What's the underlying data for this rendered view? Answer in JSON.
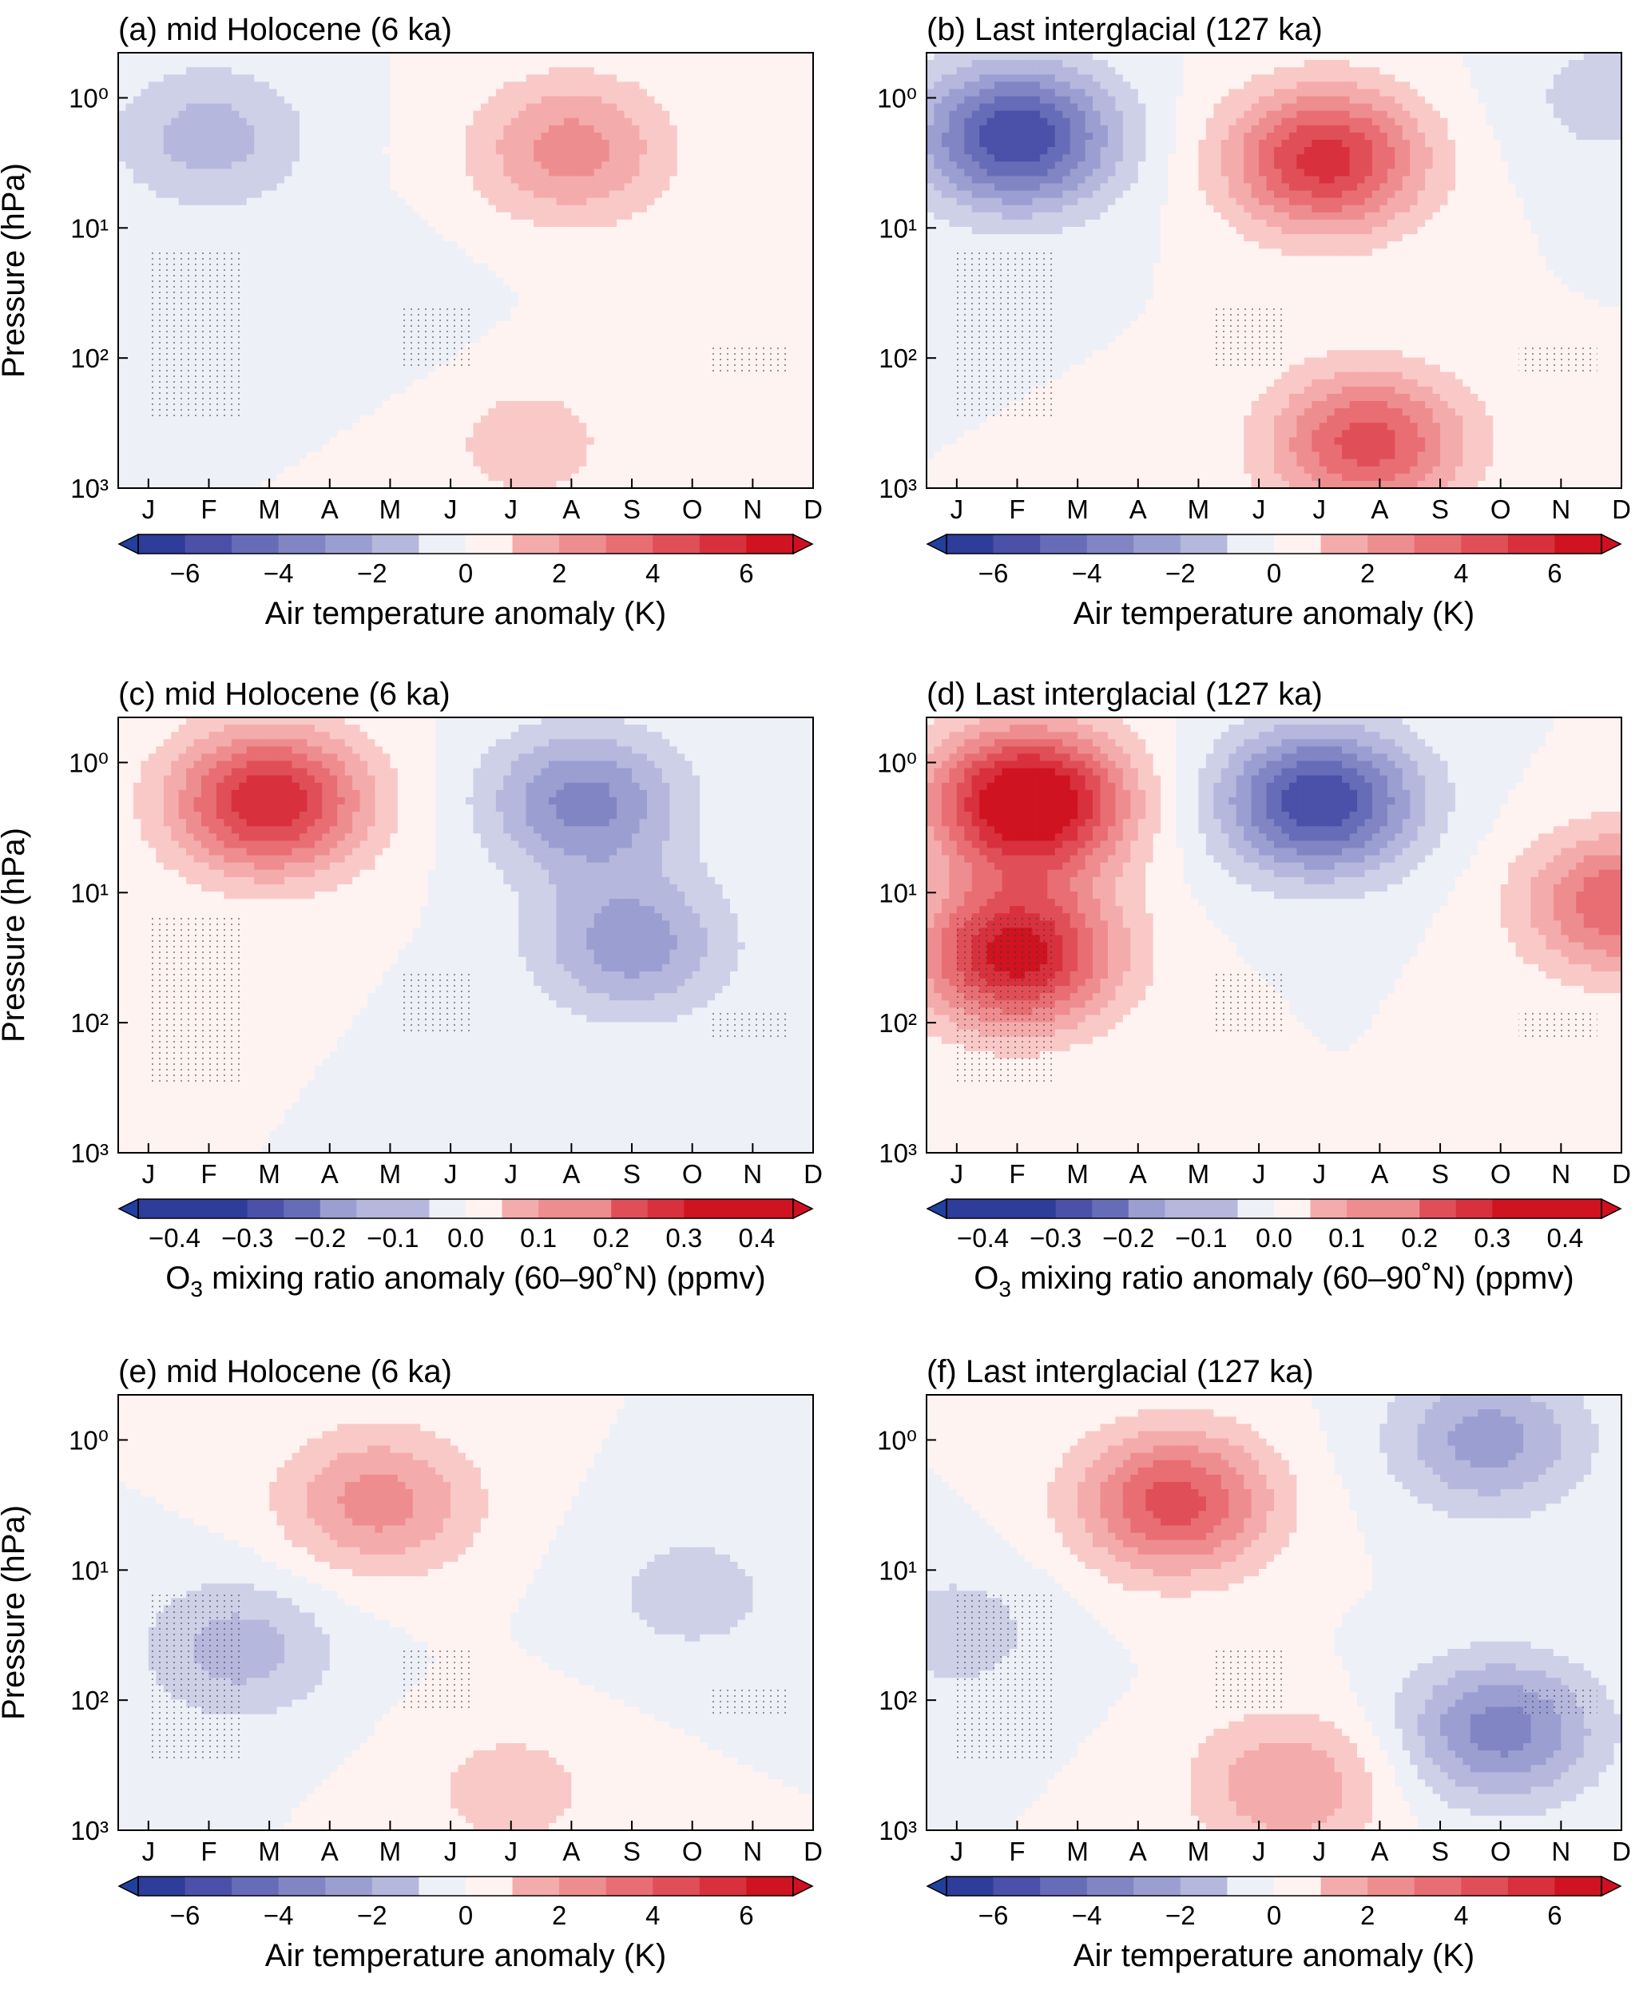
{
  "chart_data": [
    {
      "type": "heatmap",
      "title": "(a) mid Holocene (6 ka)",
      "ylabel": "Pressure (hPa)",
      "y_scale": "log",
      "y_ticks": [
        "10^0",
        "10^1",
        "10^2",
        "10^3"
      ],
      "x_ticks": [
        "J",
        "F",
        "M",
        "A",
        "M",
        "J",
        "J",
        "A",
        "S",
        "O",
        "N",
        "D"
      ],
      "colorbar": {
        "label": "Air temperature anomaly (K)",
        "tick_labels": [
          "−6",
          "−4",
          "−2",
          "0",
          "2",
          "4",
          "6"
        ],
        "range": [
          -7,
          7
        ],
        "step": 1
      },
      "features": [
        {
          "kind": "negative",
          "value": -2.5,
          "month": 2.0,
          "pressure_hPa": 2.0
        },
        {
          "kind": "positive",
          "value": 3.5,
          "month": 8.0,
          "pressure_hPa": 2.5
        },
        {
          "kind": "positive",
          "value": 1.5,
          "month": 7.3,
          "pressure_hPa": 450
        },
        {
          "kind": "negative",
          "value": -0.8,
          "month": 4.5,
          "pressure_hPa": 40
        }
      ]
    },
    {
      "type": "heatmap",
      "title": "(b) Last interglacial (127 ka)",
      "ylabel": "Pressure (hPa)",
      "y_scale": "log",
      "y_ticks": [
        "10^0",
        "10^1",
        "10^2",
        "10^3"
      ],
      "x_ticks": [
        "J",
        "F",
        "M",
        "A",
        "M",
        "J",
        "J",
        "A",
        "S",
        "O",
        "N",
        "D"
      ],
      "colorbar": {
        "label": "Air temperature anomaly (K)",
        "tick_labels": [
          "−6",
          "−4",
          "−2",
          "0",
          "2",
          "4",
          "6"
        ],
        "range": [
          -7,
          7
        ],
        "step": 1
      },
      "features": [
        {
          "kind": "negative",
          "value": -7.0,
          "month": 2.0,
          "pressure_hPa": 2.0
        },
        {
          "kind": "positive",
          "value": 6.5,
          "month": 7.1,
          "pressure_hPa": 3.0
        },
        {
          "kind": "positive",
          "value": 5.5,
          "month": 7.8,
          "pressure_hPa": 450
        },
        {
          "kind": "negative",
          "value": -1.5,
          "month": 11.8,
          "pressure_hPa": 1.0
        }
      ]
    },
    {
      "type": "heatmap",
      "title": "(c) mid Holocene (6 ka)",
      "ylabel": "Pressure (hPa)",
      "y_scale": "log",
      "y_ticks": [
        "10^0",
        "10^1",
        "10^2",
        "10^3"
      ],
      "x_ticks": [
        "J",
        "F",
        "M",
        "A",
        "M",
        "J",
        "J",
        "A",
        "S",
        "O",
        "N",
        "D"
      ],
      "colorbar": {
        "label": "O3 mixing ratio anomaly (60–90˚N) (ppmv)",
        "tick_labels": [
          "−0.4",
          "−0.3",
          "−0.2",
          "−0.1",
          "0.0",
          "0.1",
          "0.2",
          "0.3",
          "0.4"
        ],
        "range": [
          -0.45,
          0.45
        ],
        "step": 0.05
      },
      "features": [
        {
          "kind": "positive",
          "value": 0.35,
          "month": 3.0,
          "pressure_hPa": 2.0
        },
        {
          "kind": "negative",
          "value": -0.22,
          "month": 8.2,
          "pressure_hPa": 2.0
        },
        {
          "kind": "negative",
          "value": -0.18,
          "month": 9.0,
          "pressure_hPa": 25
        }
      ]
    },
    {
      "type": "heatmap",
      "title": "(d) Last interglacial (127 ka)",
      "ylabel": "Pressure (hPa)",
      "y_scale": "log",
      "y_ticks": [
        "10^0",
        "10^1",
        "10^2",
        "10^3"
      ],
      "x_ticks": [
        "J",
        "F",
        "M",
        "A",
        "M",
        "J",
        "J",
        "A",
        "S",
        "O",
        "N",
        "D"
      ],
      "colorbar": {
        "label": "O3 mixing ratio anomaly (60–90˚N) (ppmv)",
        "tick_labels": [
          "−0.4",
          "−0.3",
          "−0.2",
          "−0.1",
          "0.0",
          "0.1",
          "0.2",
          "0.3",
          "0.4"
        ],
        "range": [
          -0.45,
          0.45
        ],
        "step": 0.05
      },
      "features": [
        {
          "kind": "positive",
          "value": 0.45,
          "month": 2.2,
          "pressure_hPa": 2.0
        },
        {
          "kind": "positive",
          "value": 0.38,
          "month": 2.0,
          "pressure_hPa": 30
        },
        {
          "kind": "negative",
          "value": -0.35,
          "month": 7.0,
          "pressure_hPa": 2.0
        },
        {
          "kind": "positive",
          "value": 0.25,
          "month": 12.0,
          "pressure_hPa": 12
        }
      ]
    },
    {
      "type": "heatmap",
      "title": "(e) mid Holocene (6 ka)",
      "ylabel": "Pressure (hPa)",
      "y_scale": "log",
      "y_ticks": [
        "10^0",
        "10^1",
        "10^2",
        "10^3"
      ],
      "x_ticks": [
        "J",
        "F",
        "M",
        "A",
        "M",
        "J",
        "J",
        "A",
        "S",
        "O",
        "N",
        "D"
      ],
      "colorbar": {
        "label": "Air temperature anomaly (K)",
        "tick_labels": [
          "−6",
          "−4",
          "−2",
          "0",
          "2",
          "4",
          "6"
        ],
        "range": [
          -7,
          7
        ],
        "step": 1
      },
      "features": [
        {
          "kind": "positive",
          "value": 3.5,
          "month": 4.8,
          "pressure_hPa": 3.0
        },
        {
          "kind": "negative",
          "value": -2.5,
          "month": 2.5,
          "pressure_hPa": 40
        },
        {
          "kind": "negative",
          "value": -1.5,
          "month": 10.0,
          "pressure_hPa": 15
        },
        {
          "kind": "positive",
          "value": 1.5,
          "month": 7.0,
          "pressure_hPa": 500
        }
      ]
    },
    {
      "type": "heatmap",
      "title": "(f) Last interglacial (127 ka)",
      "ylabel": "Pressure (hPa)",
      "y_scale": "log",
      "y_ticks": [
        "10^0",
        "10^1",
        "10^2",
        "10^3"
      ],
      "x_ticks": [
        "J",
        "F",
        "M",
        "A",
        "M",
        "J",
        "J",
        "A",
        "S",
        "O",
        "N",
        "D"
      ],
      "colorbar": {
        "label": "Air temperature anomaly (K)",
        "tick_labels": [
          "−6",
          "−4",
          "−2",
          "0",
          "2",
          "4",
          "6"
        ],
        "range": [
          -7,
          7
        ],
        "step": 1
      },
      "features": [
        {
          "kind": "positive",
          "value": 5.5,
          "month": 4.6,
          "pressure_hPa": 3.0
        },
        {
          "kind": "negative",
          "value": -3.5,
          "month": 9.8,
          "pressure_hPa": 1.0
        },
        {
          "kind": "negative",
          "value": -4.5,
          "month": 10.0,
          "pressure_hPa": 170
        },
        {
          "kind": "positive",
          "value": 3.0,
          "month": 6.5,
          "pressure_hPa": 450
        },
        {
          "kind": "negative",
          "value": -1.5,
          "month": 1.0,
          "pressure_hPa": 30
        }
      ]
    }
  ]
}
